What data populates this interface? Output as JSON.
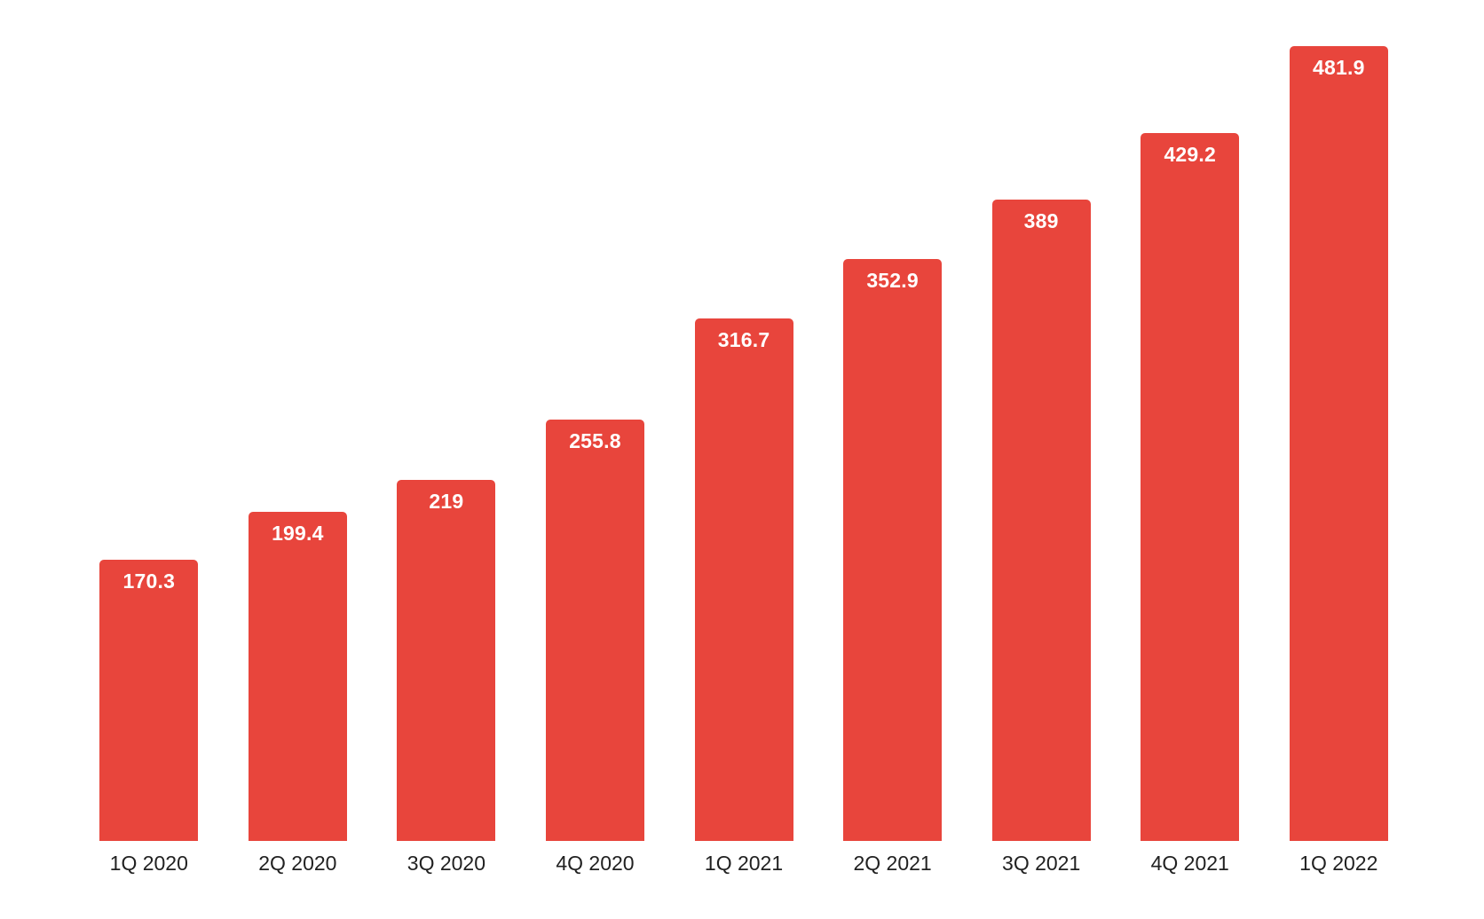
{
  "chart_data": {
    "type": "bar",
    "categories": [
      "1Q 2020",
      "2Q 2020",
      "3Q 2020",
      "4Q 2020",
      "1Q 2021",
      "2Q 2021",
      "3Q 2021",
      "4Q 2021",
      "1Q 2022"
    ],
    "values": [
      170.3,
      199.4,
      219,
      255.8,
      316.7,
      352.9,
      389,
      429.2,
      481.9
    ],
    "value_labels": [
      "170.3",
      "199.4",
      "219",
      "255.8",
      "316.7",
      "352.9",
      "389",
      "429.2",
      "481.9"
    ],
    "title": "",
    "xlabel": "",
    "ylabel": "",
    "ylim": [
      0,
      510
    ],
    "grid": false,
    "legend": false,
    "colors": {
      "bar": "#e8453c",
      "value_label": "#ffffff",
      "axis_label": "#212121",
      "background": "#ffffff"
    }
  }
}
